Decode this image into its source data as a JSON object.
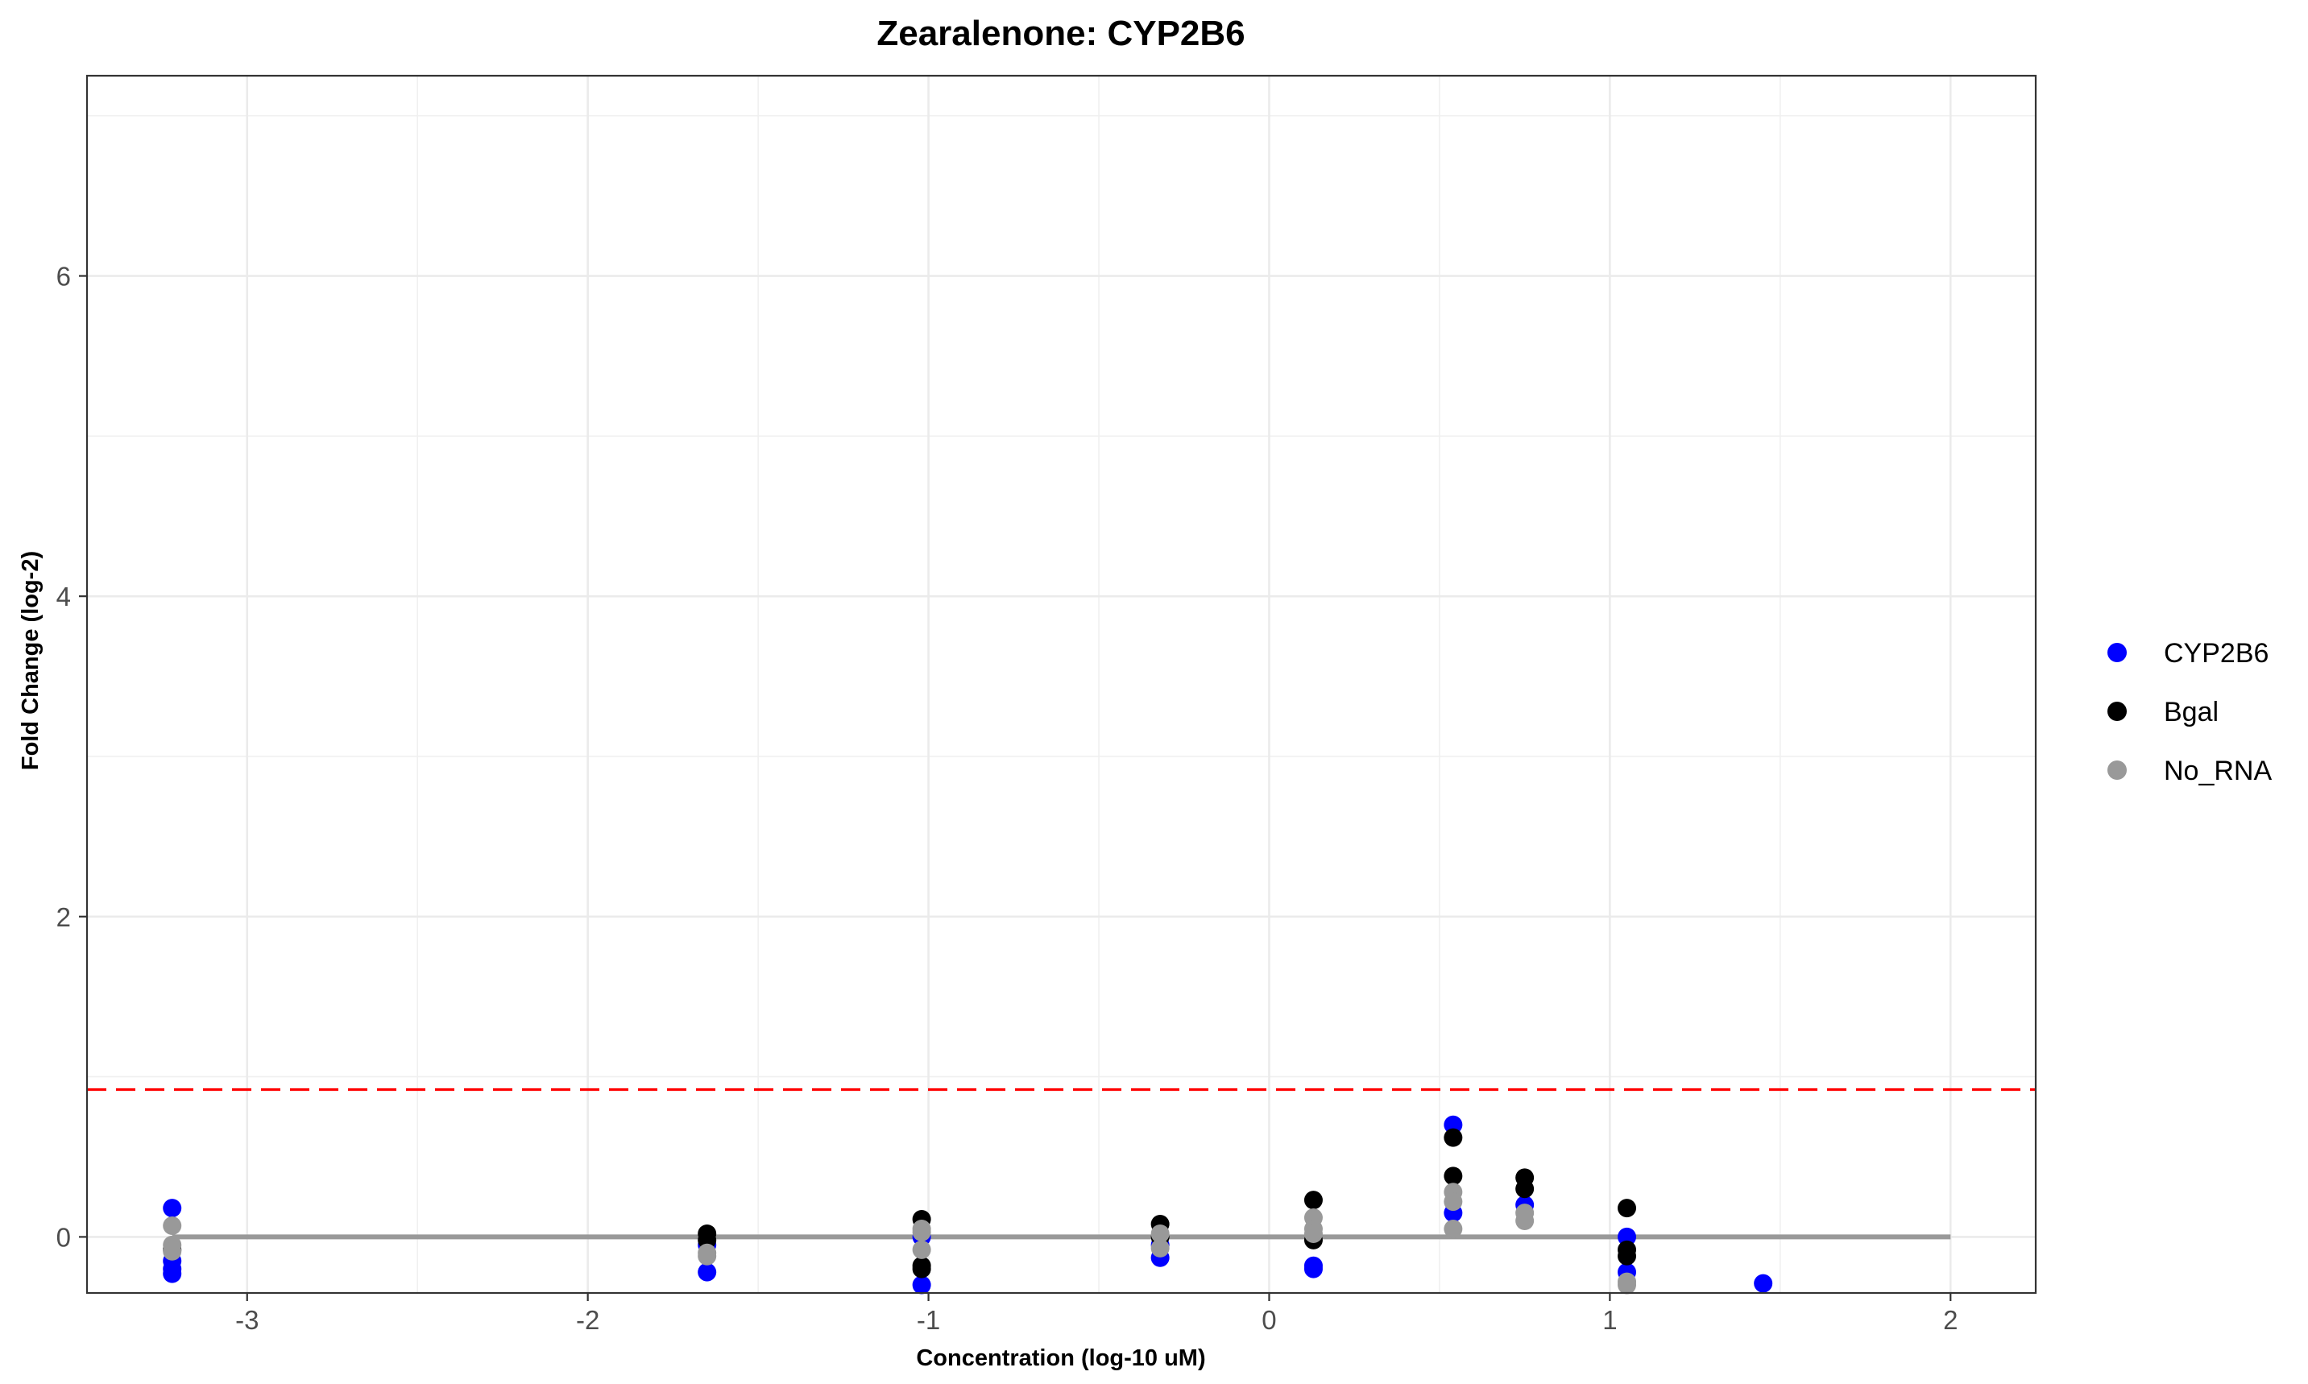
{
  "chart_data": {
    "type": "scatter",
    "title": "Zearalenone: CYP2B6",
    "xlabel": "Concentration (log-10 uM)",
    "ylabel": "Fold Change (log-2)",
    "xlim": [
      -3.47,
      2.25
    ],
    "ylim": [
      -0.35,
      7.25
    ],
    "x_ticks": [
      -3,
      -2,
      -1,
      0,
      1,
      2
    ],
    "y_ticks": [
      0,
      2,
      4,
      6
    ],
    "grid": true,
    "legend_position": "right",
    "threshold": {
      "y": 0.92,
      "color": "#ff0000",
      "style": "dashed"
    },
    "baseline": {
      "y": 0,
      "x_range": [
        -3.22,
        2.0
      ],
      "color": "#999999"
    },
    "series": [
      {
        "name": "CYP2B6",
        "color": "#0000ff",
        "points": [
          [
            -3.22,
            0.18
          ],
          [
            -3.22,
            -0.15
          ],
          [
            -3.22,
            -0.2
          ],
          [
            -3.22,
            -0.23
          ],
          [
            -1.65,
            -0.22
          ],
          [
            -1.65,
            -0.05
          ],
          [
            -1.02,
            -0.3
          ],
          [
            -1.02,
            0.0
          ],
          [
            -0.32,
            -0.13
          ],
          [
            -0.32,
            -0.05
          ],
          [
            0.13,
            -0.18
          ],
          [
            0.13,
            -0.2
          ],
          [
            0.54,
            0.7
          ],
          [
            0.54,
            0.15
          ],
          [
            0.75,
            0.2
          ],
          [
            1.05,
            -0.22
          ],
          [
            1.05,
            0.0
          ],
          [
            1.45,
            -0.29
          ]
        ]
      },
      {
        "name": "Bgal",
        "color": "#000000",
        "points": [
          [
            -3.22,
            -0.08
          ],
          [
            -1.65,
            0.02
          ],
          [
            -1.65,
            -0.02
          ],
          [
            -1.02,
            0.11
          ],
          [
            -1.02,
            -0.18
          ],
          [
            -1.02,
            -0.2
          ],
          [
            -0.32,
            0.08
          ],
          [
            -0.32,
            0.0
          ],
          [
            0.13,
            0.23
          ],
          [
            0.13,
            -0.02
          ],
          [
            0.54,
            0.62
          ],
          [
            0.54,
            0.38
          ],
          [
            0.75,
            0.37
          ],
          [
            0.75,
            0.3
          ],
          [
            1.05,
            0.18
          ],
          [
            1.05,
            -0.08
          ],
          [
            1.05,
            -0.12
          ]
        ]
      },
      {
        "name": "No_RNA",
        "color": "#999999",
        "points": [
          [
            -3.22,
            0.07
          ],
          [
            -3.22,
            -0.05
          ],
          [
            -3.22,
            -0.09
          ],
          [
            -1.65,
            -0.1
          ],
          [
            -1.65,
            -0.12
          ],
          [
            -1.02,
            0.05
          ],
          [
            -1.02,
            0.03
          ],
          [
            -1.02,
            -0.08
          ],
          [
            -0.32,
            0.02
          ],
          [
            -0.32,
            -0.07
          ],
          [
            0.13,
            0.12
          ],
          [
            0.13,
            0.05
          ],
          [
            0.13,
            0.02
          ],
          [
            0.54,
            0.28
          ],
          [
            0.54,
            0.22
          ],
          [
            0.54,
            0.05
          ],
          [
            0.75,
            0.15
          ],
          [
            0.75,
            0.1
          ],
          [
            1.05,
            -0.28
          ],
          [
            1.05,
            -0.3
          ]
        ]
      }
    ]
  }
}
